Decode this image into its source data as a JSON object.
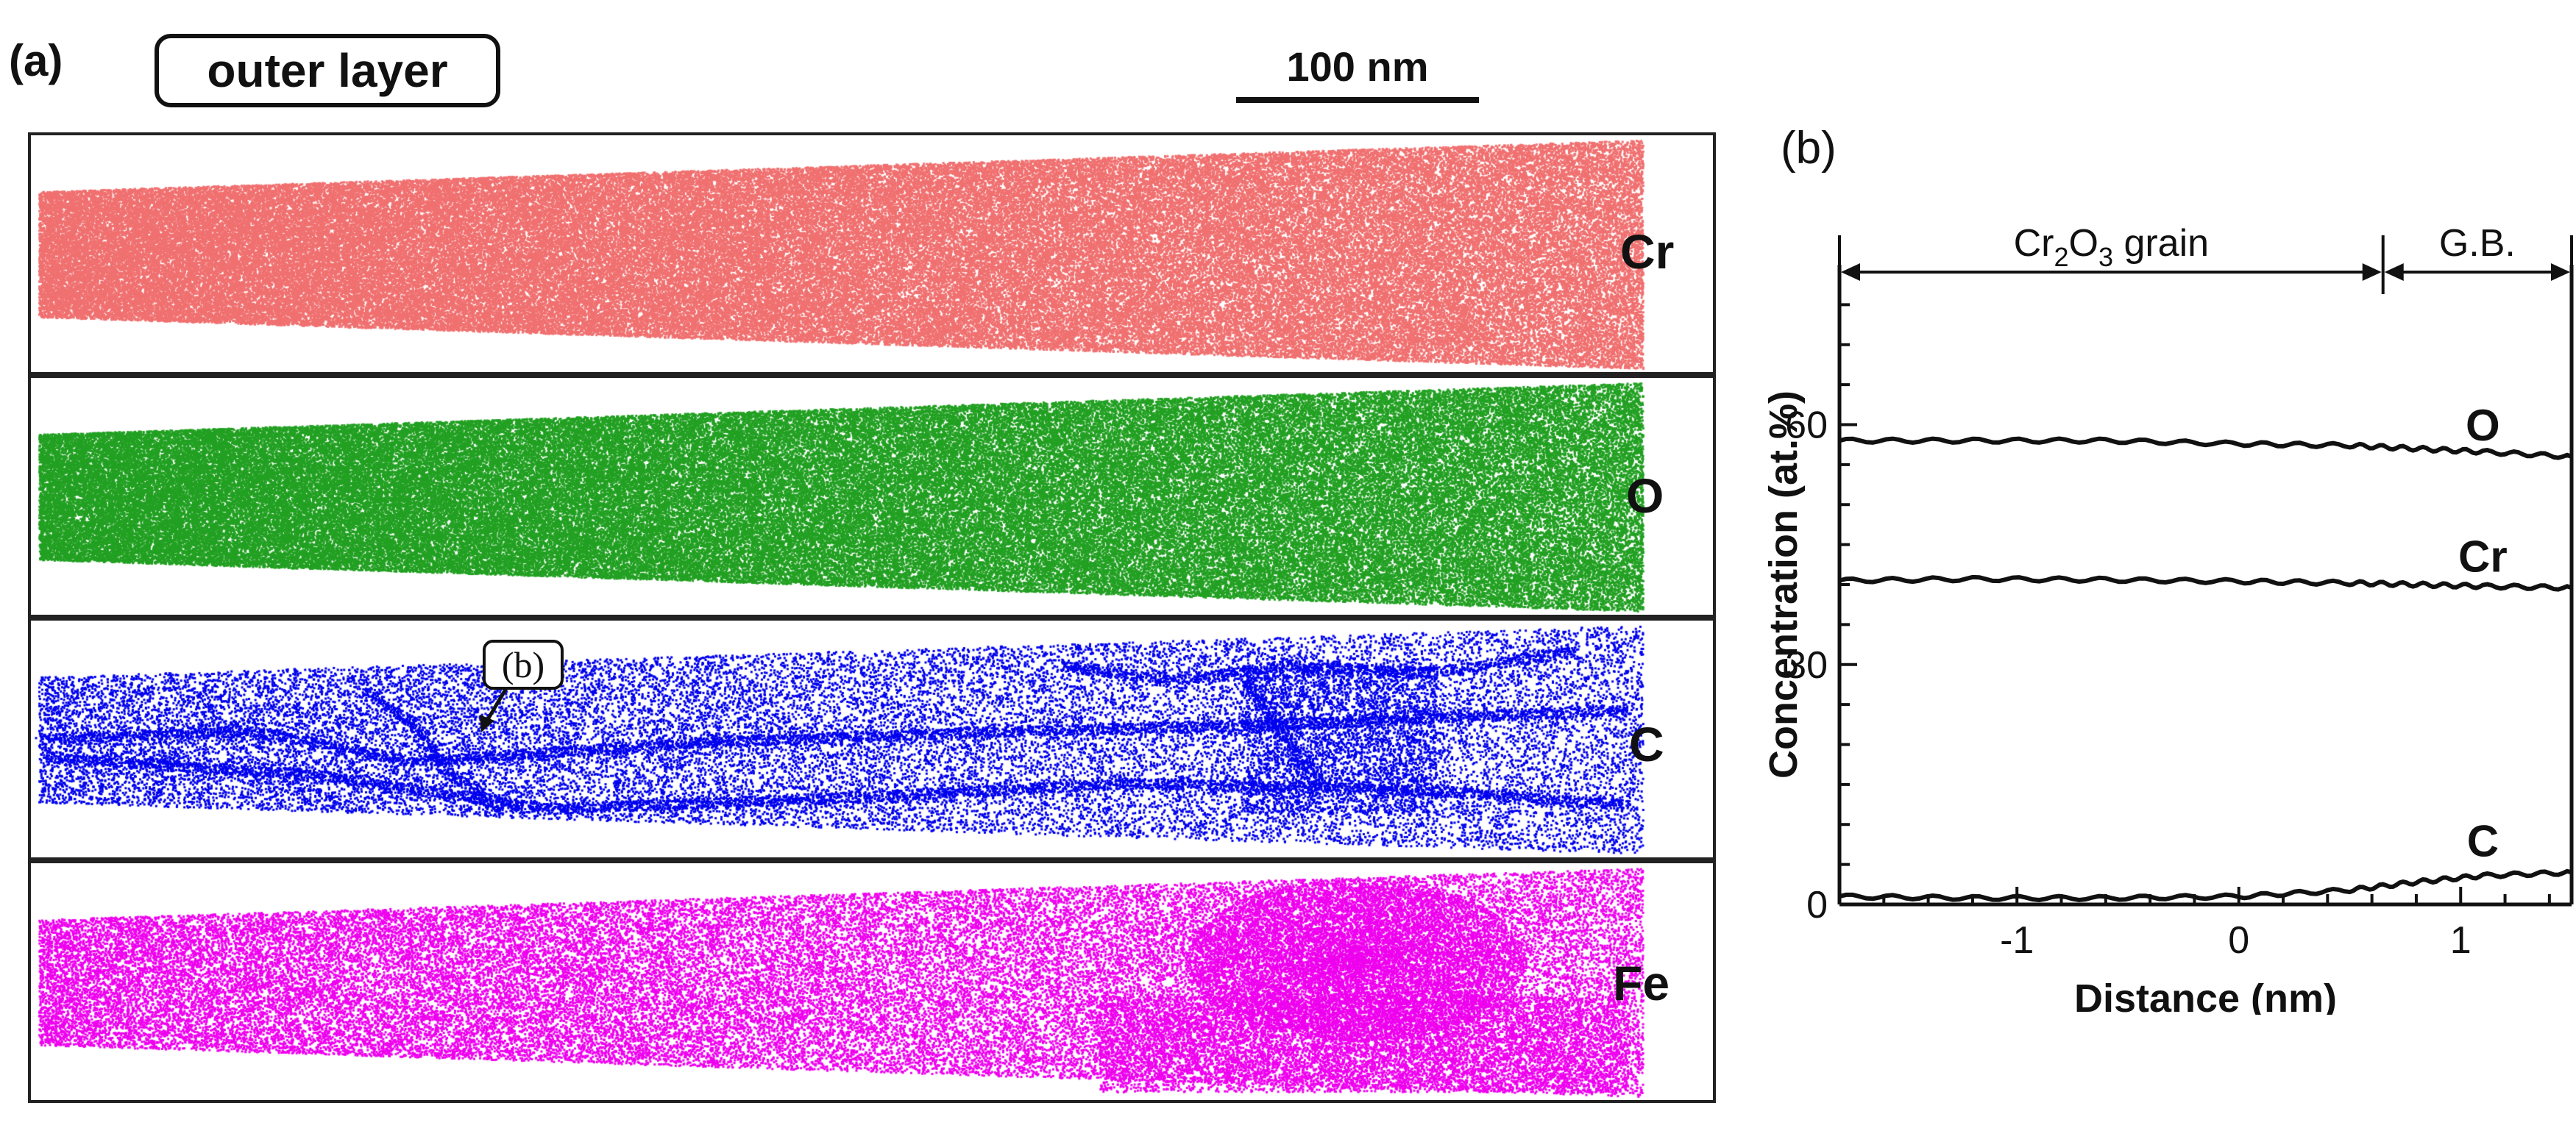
{
  "panel_a": {
    "label": "(a)",
    "title": "outer layer",
    "scalebar_label": "100 nm",
    "callout": "(b)",
    "strips": [
      {
        "element": "Cr",
        "color": "#f07070",
        "density": 0.55
      },
      {
        "element": "O",
        "color": "#22a022",
        "density": 0.55
      },
      {
        "element": "C",
        "color": "#0000ee",
        "density": 0.12
      },
      {
        "element": "Fe",
        "color": "#ee00ee",
        "density": 0.22
      }
    ]
  },
  "panel_b": {
    "label": "(b)",
    "region_labels": {
      "grain_prefix": "Cr",
      "grain_sub1": "2",
      "grain_mid": "O",
      "grain_sub2": "3",
      "grain_suffix": " grain",
      "gb": "G.B."
    }
  },
  "chart_data": {
    "type": "line",
    "xlabel": "Distance (nm)",
    "ylabel": "Concentration (at.%)",
    "xlim": [
      -1.8,
      1.5
    ],
    "ylim": [
      0,
      80
    ],
    "xticks": [
      -1,
      0,
      1
    ],
    "yticks": [
      0,
      30,
      60
    ],
    "grain_range": [
      -1.8,
      0.65
    ],
    "gb_range": [
      0.65,
      1.5
    ],
    "series": [
      {
        "name": "O",
        "x": [
          -1.8,
          -1.2,
          -0.6,
          0.0,
          0.5,
          0.8,
          1.1,
          1.5
        ],
        "values": [
          58,
          58,
          58,
          57.6,
          57.4,
          57,
          56.6,
          56
        ]
      },
      {
        "name": "Cr",
        "x": [
          -1.8,
          -1.2,
          -0.6,
          0.0,
          0.5,
          0.8,
          1.1,
          1.5
        ],
        "values": [
          40.5,
          40.7,
          40.6,
          40.4,
          40.2,
          40,
          39.8,
          39.6
        ]
      },
      {
        "name": "C",
        "x": [
          -1.8,
          -1.2,
          -0.6,
          0.0,
          0.5,
          0.8,
          1.1,
          1.5
        ],
        "values": [
          1,
          0.8,
          0.8,
          1,
          1.8,
          2.8,
          3.6,
          4
        ]
      }
    ]
  }
}
